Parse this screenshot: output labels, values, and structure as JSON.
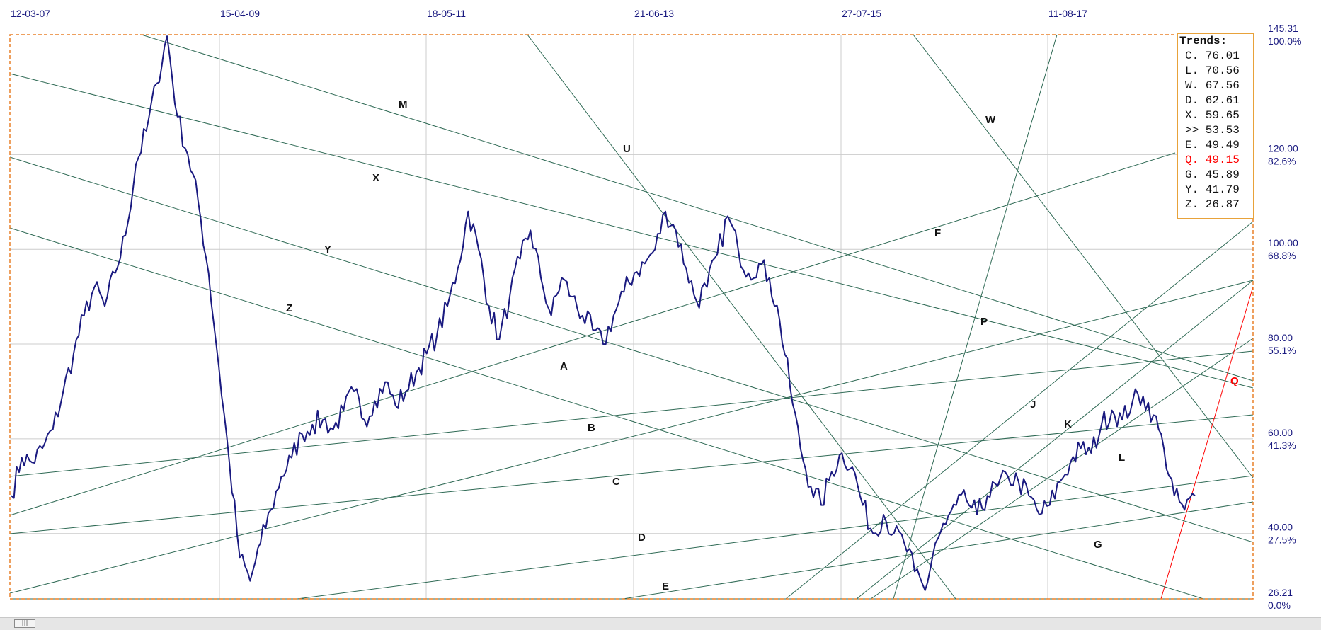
{
  "chart_data": {
    "type": "line",
    "x_tick_labels": [
      "12-03-07",
      "15-04-09",
      "18-05-11",
      "21-06-13",
      "27-07-15",
      "11-08-17"
    ],
    "y_axis": {
      "min": 26.21,
      "max": 145.31,
      "tick_values": [
        "145.31",
        "120.00",
        "100.00",
        "80.00",
        "60.00",
        "40.00",
        "26.21"
      ],
      "tick_percents": [
        "100.0%",
        "82.6%",
        "68.8%",
        "55.1%",
        "41.3%",
        "27.5%",
        "0.0%"
      ]
    },
    "series": [
      {
        "color": "#1a1a80",
        "values": [
          48,
          56,
          55,
          58,
          62,
          70,
          78,
          86,
          92,
          88,
          95,
          103,
          118,
          125,
          135,
          145,
          128,
          120,
          110,
          95,
          75,
          55,
          35,
          30,
          38,
          45,
          52,
          56,
          61,
          63,
          64,
          62,
          66,
          70,
          64,
          68,
          72,
          67,
          70,
          74,
          78,
          82,
          88,
          96,
          108,
          100,
          88,
          81,
          90,
          98,
          104,
          94,
          86,
          94,
          90,
          86,
          83,
          80,
          86,
          91,
          95,
          97,
          100,
          108,
          104,
          96,
          89,
          92,
          99,
          107,
          100,
          95,
          97,
          94,
          85,
          71,
          58,
          50,
          46,
          53,
          57,
          54,
          46,
          40,
          44,
          40,
          38,
          32,
          28,
          38,
          42,
          46,
          47,
          44,
          48,
          50,
          52,
          51,
          48,
          44,
          46,
          51,
          55,
          58,
          57,
          63,
          66,
          64,
          68,
          69,
          65,
          58,
          48,
          45,
          48
        ]
      }
    ],
    "trendlines": [
      {
        "label": "M",
        "color": "#2f6a55"
      },
      {
        "label": "X",
        "color": "#2f6a55"
      },
      {
        "label": "Y",
        "color": "#2f6a55"
      },
      {
        "label": "Z",
        "color": "#2f6a55"
      },
      {
        "label": "U",
        "color": "#2f6a55"
      },
      {
        "label": "W",
        "color": "#2f6a55"
      },
      {
        "label": "P",
        "color": "#2f6a55"
      },
      {
        "label": "F",
        "color": "#2f6a55"
      },
      {
        "label": "A",
        "color": "#2f6a55"
      },
      {
        "label": "B",
        "color": "#2f6a55"
      },
      {
        "label": "C",
        "color": "#2f6a55"
      },
      {
        "label": "D",
        "color": "#2f6a55"
      },
      {
        "label": "E",
        "color": "#2f6a55"
      },
      {
        "label": "J",
        "color": "#2f6a55"
      },
      {
        "label": "K",
        "color": "#2f6a55"
      },
      {
        "label": "L",
        "color": "#2f6a55"
      },
      {
        "label": "G",
        "color": "#2f6a55"
      },
      {
        "label": "Q",
        "color": "#ff0000"
      }
    ],
    "grid": true,
    "legend": {
      "title": "Trends:",
      "placement": "top-right",
      "entries": [
        {
          "label": "C.",
          "value": "76.01"
        },
        {
          "label": "L.",
          "value": "70.56"
        },
        {
          "label": "W.",
          "value": "67.56"
        },
        {
          "label": "D.",
          "value": "62.61"
        },
        {
          "label": "X.",
          "value": "59.65"
        },
        {
          "label": ">>",
          "value": "53.53"
        },
        {
          "label": "E.",
          "value": "49.49"
        },
        {
          "label": "Q.",
          "value": "49.15",
          "color": "#ff0000"
        },
        {
          "label": "G.",
          "value": "45.89"
        },
        {
          "label": "Y.",
          "value": "41.79"
        },
        {
          "label": "Z.",
          "value": "26.87"
        }
      ]
    }
  },
  "colors": {
    "price": "#1a1a80",
    "trendline": "#2f6a55",
    "highlight": "#ff0000",
    "frame": "#e8802a",
    "axis_text": "#1a1a80",
    "grid": "#cccccc"
  },
  "scrollbar": {
    "thumb_label": "|||"
  }
}
